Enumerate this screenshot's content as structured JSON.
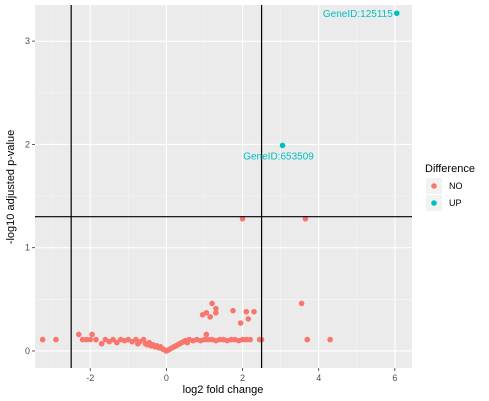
{
  "chart_data": {
    "type": "scatter",
    "title": "",
    "xlabel": "log2 fold change",
    "ylabel": "-log10 adjusted p-value",
    "xlim": [
      -3.45,
      6.45
    ],
    "ylim": [
      -0.165,
      3.35
    ],
    "x_ticks": [
      -2,
      0,
      2,
      4,
      6
    ],
    "y_ticks": [
      0,
      1,
      2,
      3
    ],
    "grid": true,
    "legend": {
      "title": "Difference",
      "placement": "right",
      "entries": [
        {
          "label": "NO",
          "color": "#F8766D"
        },
        {
          "label": "UP",
          "color": "#00BFC4"
        }
      ]
    },
    "thresholds": {
      "vertical": [
        -2.5,
        2.5
      ],
      "horizontal": [
        1.3
      ]
    },
    "series": [
      {
        "name": "NO",
        "color": "#F8766D",
        "points": [
          [
            -3.25,
            0.11
          ],
          [
            -2.9,
            0.11
          ],
          [
            -2.3,
            0.16
          ],
          [
            -2.2,
            0.11
          ],
          [
            -2.1,
            0.11
          ],
          [
            -2.0,
            0.11
          ],
          [
            -1.95,
            0.16
          ],
          [
            -1.85,
            0.11
          ],
          [
            -1.7,
            0.07
          ],
          [
            -1.6,
            0.11
          ],
          [
            -1.5,
            0.09
          ],
          [
            -1.4,
            0.11
          ],
          [
            -1.3,
            0.08
          ],
          [
            -1.2,
            0.11
          ],
          [
            -1.1,
            0.1
          ],
          [
            -1.0,
            0.11
          ],
          [
            -0.9,
            0.09
          ],
          [
            -0.8,
            0.11
          ],
          [
            -0.75,
            0.07
          ],
          [
            -0.7,
            0.09
          ],
          [
            -0.6,
            0.11
          ],
          [
            -0.55,
            0.07
          ],
          [
            -0.5,
            0.06
          ],
          [
            -0.45,
            0.08
          ],
          [
            -0.4,
            0.05
          ],
          [
            -0.35,
            0.06
          ],
          [
            -0.3,
            0.04
          ],
          [
            -0.25,
            0.05
          ],
          [
            -0.2,
            0.03
          ],
          [
            -0.15,
            0.04
          ],
          [
            -0.1,
            0.02
          ],
          [
            -0.05,
            0.01
          ],
          [
            0.0,
            0.0
          ],
          [
            0.05,
            0.01
          ],
          [
            0.1,
            0.02
          ],
          [
            0.15,
            0.03
          ],
          [
            0.2,
            0.04
          ],
          [
            0.25,
            0.05
          ],
          [
            0.3,
            0.06
          ],
          [
            0.35,
            0.07
          ],
          [
            0.4,
            0.08
          ],
          [
            0.45,
            0.09
          ],
          [
            0.5,
            0.1
          ],
          [
            0.55,
            0.08
          ],
          [
            0.6,
            0.11
          ],
          [
            0.7,
            0.1
          ],
          [
            0.8,
            0.11
          ],
          [
            0.9,
            0.1
          ],
          [
            1.0,
            0.11
          ],
          [
            1.05,
            0.16
          ],
          [
            1.1,
            0.11
          ],
          [
            1.2,
            0.11
          ],
          [
            1.3,
            0.1
          ],
          [
            1.4,
            0.11
          ],
          [
            1.5,
            0.11
          ],
          [
            1.6,
            0.1
          ],
          [
            1.7,
            0.11
          ],
          [
            1.8,
            0.11
          ],
          [
            1.9,
            0.1
          ],
          [
            2.0,
            0.11
          ],
          [
            2.1,
            0.11
          ],
          [
            2.2,
            0.11
          ],
          [
            0.95,
            0.35
          ],
          [
            1.05,
            0.37
          ],
          [
            1.15,
            0.33
          ],
          [
            1.2,
            0.46
          ],
          [
            1.3,
            0.41
          ],
          [
            1.3,
            0.37
          ],
          [
            1.75,
            0.39
          ],
          [
            1.95,
            0.27
          ],
          [
            2.1,
            0.38
          ],
          [
            2.15,
            0.31
          ],
          [
            2.3,
            0.38
          ],
          [
            2.45,
            0.11
          ],
          [
            2.5,
            0.11
          ],
          [
            3.55,
            0.46
          ],
          [
            3.7,
            0.11
          ],
          [
            4.3,
            0.11
          ],
          [
            2.0,
            1.28
          ],
          [
            3.65,
            1.28
          ]
        ]
      },
      {
        "name": "UP",
        "color": "#00BFC4",
        "points": [
          [
            3.05,
            1.99
          ],
          [
            6.05,
            3.27
          ]
        ]
      }
    ],
    "annotations": [
      {
        "text": "GeneID:125115",
        "x": 6.05,
        "y": 3.27,
        "color": "#00BFC4"
      },
      {
        "text": "GeneID:653509",
        "x": 3.05,
        "y": 1.99,
        "color": "#00BFC4"
      }
    ]
  }
}
